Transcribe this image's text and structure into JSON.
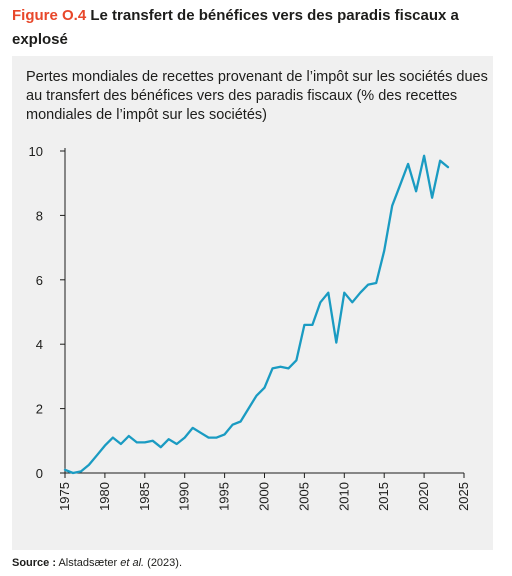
{
  "header": {
    "figure_label": "Figure O.4",
    "title": "Le transfert de bénéfices vers des paradis fiscaux a explosé"
  },
  "source": {
    "label": "Source :",
    "authors": "Alstadsæter",
    "etal": "et al.",
    "year": "(2023)."
  },
  "colors": {
    "line": "#1a9bc2",
    "panel_background": "#f0f0f0",
    "figure_label": "#e8472a",
    "axis": "#1d1d1b"
  },
  "chart_data": {
    "type": "line",
    "title": "Pertes mondiales de recettes provenant de l’impôt sur les sociétés dues au transfert des bénéfices vers des paradis fiscaux (% des recettes mondiales de l’impôt sur les sociétés)",
    "xlabel": "",
    "ylabel": "",
    "xlim": [
      1975,
      2025
    ],
    "ylim": [
      0,
      10
    ],
    "x_ticks": [
      1975,
      1980,
      1985,
      1990,
      1995,
      2000,
      2005,
      2010,
      2015,
      2020,
      2025
    ],
    "y_ticks": [
      0,
      2,
      4,
      6,
      8,
      10
    ],
    "grid": false,
    "legend": "none",
    "series": [
      {
        "x": [
          1975,
          1976,
          1977,
          1978,
          1979,
          1980,
          1981,
          1982,
          1983,
          1984,
          1985,
          1986,
          1987,
          1988,
          1989,
          1990,
          1991,
          1992,
          1993,
          1994,
          1995,
          1996,
          1997,
          1998,
          1999,
          2000,
          2001,
          2002,
          2003,
          2004,
          2005,
          2006,
          2007,
          2008,
          2009,
          2010,
          2011,
          2012,
          2013,
          2014,
          2015,
          2016,
          2017,
          2018,
          2019,
          2020,
          2021,
          2022,
          2023
        ],
        "values": [
          0.1,
          0.0,
          0.05,
          0.25,
          0.55,
          0.85,
          1.1,
          0.9,
          1.15,
          0.95,
          0.95,
          1.0,
          0.8,
          1.05,
          0.9,
          1.1,
          1.4,
          1.25,
          1.1,
          1.1,
          1.2,
          1.5,
          1.6,
          2.0,
          2.4,
          2.65,
          3.25,
          3.3,
          3.25,
          3.5,
          4.6,
          4.6,
          5.3,
          5.6,
          4.05,
          5.6,
          5.3,
          5.6,
          5.85,
          5.9,
          6.9,
          8.3,
          8.95,
          9.6,
          8.75,
          9.85,
          8.55,
          9.7,
          9.5
        ]
      }
    ]
  }
}
